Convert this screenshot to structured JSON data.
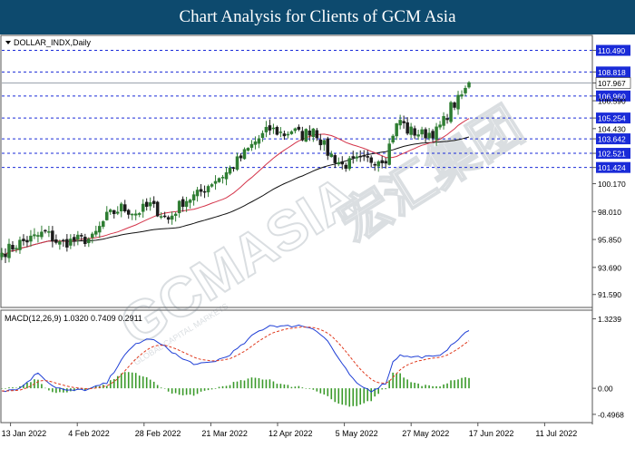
{
  "banner": {
    "title": "Chart Analysis for Clients of GCM Asia"
  },
  "watermark": {
    "brand": "GCMASIA",
    "sub": "GLOBAL CAPITAL MARKETS",
    "cn": "宏汇集团"
  },
  "colors": {
    "banner_bg": "#0d4a6e",
    "up": "#2e7d32",
    "down": "#1b1b1b",
    "ma_fast": "#d4344a",
    "ma_slow": "#111111",
    "macd": "#1f3fd6",
    "signal": "#e03a1e",
    "hist": "#3a9a2a",
    "level_line": "#1a2bd8",
    "level_label_bg": "#1a2bd8",
    "price_label_bg": "#ffffff"
  },
  "chart_data": [
    {
      "type": "candlestick",
      "title": "DOLLAR_INDX,Daily",
      "instrument": "DOLLAR_INDX",
      "timeframe": "Daily",
      "ylim": [
        90.8,
        111.3
      ],
      "y_ticks": [
        "110.490",
        "108.818",
        "107.967",
        "106.960",
        "106.590",
        "105.254",
        "104.430",
        "103.642",
        "102.521",
        "101.424",
        "100.170",
        "98.010",
        "95.850",
        "93.690",
        "91.590"
      ],
      "highlighted_levels": [
        "110.490",
        "108.818",
        "106.960",
        "105.254",
        "103.642",
        "102.521",
        "101.424"
      ],
      "current_price": "107.967",
      "x_labels": [
        "13 Jan 2022",
        "4 Feb 2022",
        "28 Feb 2022",
        "21 Mar 2022",
        "12 Apr 2022",
        "5 May 2022",
        "27 May 2022",
        "17 Jun 2022",
        "11 Jul 2022"
      ],
      "indicators": [
        "moving average (red)",
        "moving average (black)"
      ],
      "close_anchors": [
        [
          0,
          94.8
        ],
        [
          5,
          95.6
        ],
        [
          9,
          96.0
        ],
        [
          12,
          96.4
        ],
        [
          16,
          95.5
        ],
        [
          20,
          95.8
        ],
        [
          25,
          95.9
        ],
        [
          29,
          97.6
        ],
        [
          33,
          98.3
        ],
        [
          37,
          97.9
        ],
        [
          41,
          98.5
        ],
        [
          46,
          97.4
        ],
        [
          50,
          98.8
        ],
        [
          54,
          99.3
        ],
        [
          58,
          100.3
        ],
        [
          62,
          101.0
        ],
        [
          66,
          102.2
        ],
        [
          70,
          103.4
        ],
        [
          74,
          104.4
        ],
        [
          78,
          104.0
        ],
        [
          80,
          104.3
        ],
        [
          83,
          103.9
        ],
        [
          86,
          104.5
        ],
        [
          90,
          102.6
        ],
        [
          94,
          101.6
        ],
        [
          98,
          101.9
        ],
        [
          102,
          102.0
        ],
        [
          106,
          102.2
        ],
        [
          108,
          104.1
        ],
        [
          110,
          105.1
        ],
        [
          112,
          104.3
        ],
        [
          116,
          104.0
        ],
        [
          120,
          104.2
        ],
        [
          122,
          105.0
        ],
        [
          124,
          106.1
        ],
        [
          126,
          106.6
        ],
        [
          128,
          107.4
        ],
        [
          129,
          108.0
        ]
      ]
    },
    {
      "type": "line",
      "title": "MACD(12,26,9) 1.0320 0.7409 0.2911",
      "params": "MACD(12,26,9)",
      "values": [
        "1.0320",
        "0.7409",
        "0.2911"
      ],
      "series": [],
      "ylim": [
        -0.62,
        1.42
      ],
      "y_ticks": [
        "1.3239",
        "0.00",
        "-0.4968"
      ],
      "macd_anchors": [
        [
          0,
          -0.05
        ],
        [
          5,
          0.0
        ],
        [
          10,
          0.3
        ],
        [
          14,
          0.05
        ],
        [
          18,
          -0.05
        ],
        [
          24,
          -0.02
        ],
        [
          29,
          0.1
        ],
        [
          33,
          0.55
        ],
        [
          37,
          0.85
        ],
        [
          41,
          0.95
        ],
        [
          46,
          0.75
        ],
        [
          50,
          0.55
        ],
        [
          54,
          0.45
        ],
        [
          58,
          0.5
        ],
        [
          62,
          0.6
        ],
        [
          66,
          0.8
        ],
        [
          70,
          1.05
        ],
        [
          74,
          1.2
        ],
        [
          78,
          1.18
        ],
        [
          82,
          1.2
        ],
        [
          86,
          1.15
        ],
        [
          90,
          0.9
        ],
        [
          94,
          0.45
        ],
        [
          98,
          0.08
        ],
        [
          102,
          -0.05
        ],
        [
          106,
          0.1
        ],
        [
          108,
          0.5
        ],
        [
          110,
          0.65
        ],
        [
          112,
          0.6
        ],
        [
          116,
          0.6
        ],
        [
          120,
          0.6
        ],
        [
          124,
          0.8
        ],
        [
          127,
          1.0
        ],
        [
          129,
          1.1
        ]
      ]
    }
  ]
}
